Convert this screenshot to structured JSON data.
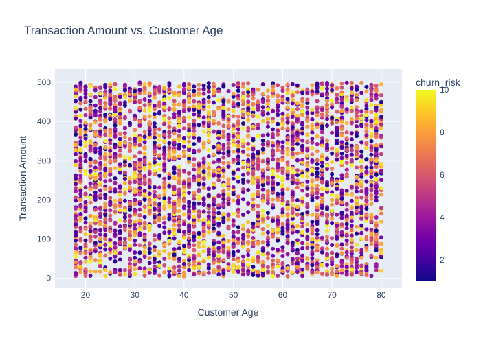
{
  "chart_data": {
    "type": "scatter",
    "title": "Transaction Amount vs. Customer Age",
    "xlabel": "Customer Age",
    "ylabel": "Transaction Amount",
    "xlim": [
      13.8,
      84.2
    ],
    "ylim": [
      -25,
      535
    ],
    "x_ticks": [
      20,
      30,
      40,
      50,
      60,
      70,
      80
    ],
    "y_ticks": [
      0,
      100,
      200,
      300,
      400,
      500
    ],
    "grid": true,
    "x_domain": [
      18,
      80
    ],
    "y_domain": [
      5,
      500
    ],
    "point_count": 4000,
    "color_scale": {
      "title": "churn_risk",
      "min": 1,
      "max": 10,
      "ticks": [
        2,
        4,
        6,
        8,
        10
      ],
      "colorscale": "plasma",
      "colors": [
        "#0d0887",
        "#46039f",
        "#7201a8",
        "#9c179e",
        "#bd3786",
        "#d8576b",
        "#ed7953",
        "#fb9f3a",
        "#fdca26",
        "#f0f921"
      ]
    },
    "plot_background": "#e5ecf6",
    "grid_color": "#ffffff"
  }
}
